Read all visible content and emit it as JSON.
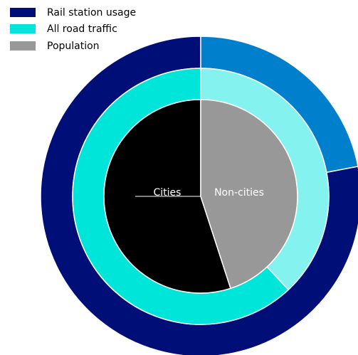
{
  "chart_data": {
    "type": "pie",
    "variant": "nested-donut",
    "categories": [
      "Cities",
      "Non-cities"
    ],
    "series": [
      {
        "name": "Rail station usage",
        "values": [
          78,
          22
        ],
        "colors": [
          "#000e78",
          "#0080cc"
        ]
      },
      {
        "name": "All road traffic",
        "values": [
          62,
          38
        ],
        "colors": [
          "#00e5d9",
          "#84f2ee"
        ]
      },
      {
        "name": "Population",
        "values": [
          55,
          45
        ],
        "colors": [
          "#000000",
          "#989898"
        ]
      }
    ],
    "legend": {
      "placement": "top-left",
      "items": [
        {
          "label": "Rail station usage",
          "color": "#000e78"
        },
        {
          "label": "All road traffic",
          "color": "#00e5d9"
        },
        {
          "label": "Population",
          "color": "#989898"
        }
      ]
    },
    "labels": {
      "left": "Cities",
      "right": "Non-cities"
    }
  }
}
